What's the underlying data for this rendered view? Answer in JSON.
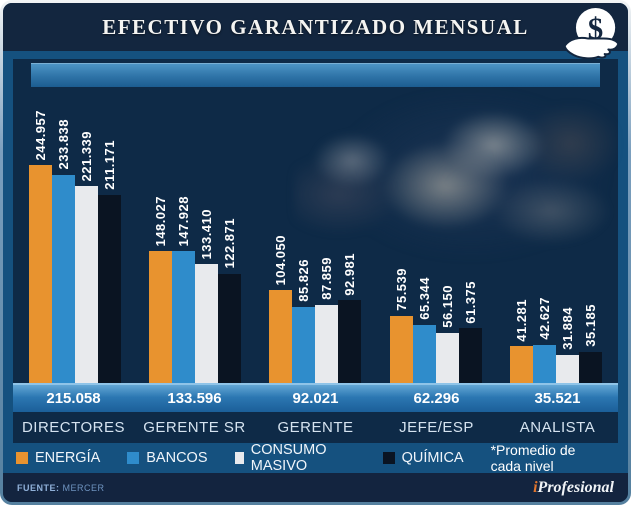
{
  "header": {
    "title": "EFECTIVO GARANTIZADO MENSUAL"
  },
  "chart_data": {
    "type": "bar",
    "title": "EFECTIVO GARANTIZADO MENSUAL",
    "categories": [
      "DIRECTORES",
      "GERENTE SR",
      "GERENTE",
      "JEFE/ESP",
      "ANALISTA"
    ],
    "series": [
      {
        "name": "ENERGÍA",
        "color": "#E8932F",
        "values": [
          244957,
          148027,
          104050,
          75539,
          41281
        ],
        "labels": [
          "244.957",
          "148.027",
          "104.050",
          "75.539",
          "41.281"
        ]
      },
      {
        "name": "BANCOS",
        "color": "#2F8CCB",
        "values": [
          233838,
          147928,
          85826,
          65344,
          42627
        ],
        "labels": [
          "233.838",
          "147.928",
          "85.826",
          "65.344",
          "42.627"
        ]
      },
      {
        "name": "CONSUMO MASIVO",
        "color": "#E8EAED",
        "values": [
          221339,
          133410,
          87859,
          56150,
          31884
        ],
        "labels": [
          "221.339",
          "133.410",
          "87.859",
          "56.150",
          "31.884"
        ]
      },
      {
        "name": "QUÍMICA",
        "color": "#0A1422",
        "values": [
          211171,
          122871,
          92981,
          61375,
          35185
        ],
        "labels": [
          "211.171",
          "122.871",
          "92.981",
          "61.375",
          "35.185"
        ]
      }
    ],
    "averages": {
      "values": [
        215058,
        133596,
        92021,
        62296,
        35521
      ],
      "labels": [
        "215.058",
        "133.596",
        "92.021",
        "62.296",
        "35.521"
      ],
      "note": "*Promedio de cada nivel"
    },
    "ylim": [
      0,
      245000
    ],
    "grid": false,
    "legend_position": "bottom"
  },
  "footer": {
    "source_label": "FUENTE:",
    "source_value": "MERCER",
    "brand_prefix": "i",
    "brand_rest": "Profesional"
  }
}
